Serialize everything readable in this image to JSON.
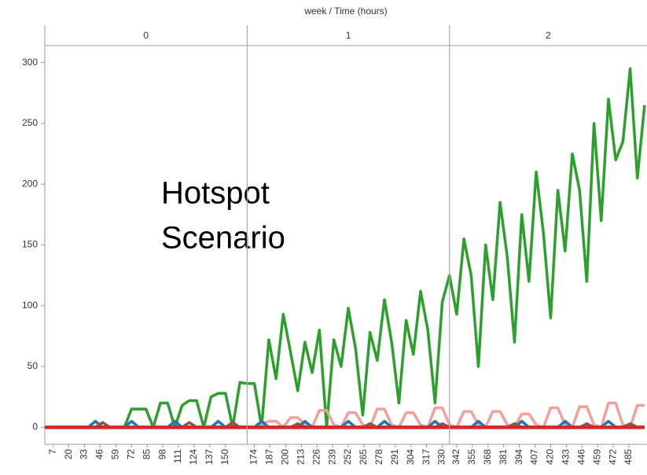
{
  "chart_data": {
    "type": "line",
    "title": "week  /  Time (hours)",
    "facets": [
      "0",
      "1",
      "2"
    ],
    "week_starts": [
      0,
      168,
      336
    ],
    "annotation": [
      "Hotspot",
      "Scenario"
    ],
    "xlim": [
      0,
      500
    ],
    "ylim": [
      -14,
      314
    ],
    "yticks": [
      0,
      50,
      100,
      150,
      200,
      250,
      300
    ],
    "xticks": [
      7,
      20,
      33,
      46,
      59,
      72,
      85,
      98,
      111,
      124,
      137,
      150,
      174,
      187,
      200,
      213,
      226,
      239,
      252,
      265,
      278,
      291,
      304,
      317,
      330,
      342,
      355,
      368,
      381,
      394,
      407,
      420,
      433,
      446,
      459,
      472,
      485
    ],
    "x": [
      0,
      6,
      12,
      18,
      24,
      30,
      36,
      42,
      48,
      54,
      60,
      66,
      72,
      78,
      84,
      90,
      96,
      102,
      108,
      114,
      120,
      126,
      132,
      138,
      144,
      150,
      156,
      162,
      168,
      174,
      180,
      186,
      192,
      198,
      204,
      210,
      216,
      222,
      228,
      234,
      240,
      246,
      252,
      258,
      264,
      270,
      276,
      282,
      288,
      294,
      300,
      306,
      312,
      318,
      324,
      330,
      336,
      342,
      348,
      354,
      360,
      366,
      372,
      378,
      384,
      390,
      396,
      402,
      408,
      414,
      420,
      426,
      432,
      438,
      444,
      450,
      456,
      462,
      468,
      474,
      480,
      486,
      492,
      498
    ],
    "series": [
      {
        "color": "#2ca02c",
        "width": 3.5,
        "values": [
          0,
          0,
          0,
          0,
          0,
          0,
          0,
          0,
          0,
          0,
          0,
          0,
          15,
          15,
          15,
          0,
          20,
          20,
          0,
          18,
          22,
          22,
          0,
          25,
          28,
          28,
          0,
          37,
          36,
          36,
          0,
          72,
          40,
          93,
          62,
          30,
          70,
          45,
          80,
          0,
          72,
          50,
          98,
          65,
          10,
          78,
          55,
          105,
          70,
          20,
          88,
          60,
          112,
          80,
          20,
          103,
          125,
          93,
          155,
          125,
          50,
          150,
          105,
          185,
          140,
          70,
          175,
          120,
          210,
          160,
          90,
          195,
          145,
          225,
          195,
          120,
          250,
          170,
          270,
          220,
          235,
          295,
          205,
          265
        ]
      },
      {
        "color": "#f4a09a",
        "width": 3.5,
        "values": [
          0,
          0,
          0,
          0,
          0,
          0,
          0,
          0,
          0,
          0,
          0,
          0,
          0,
          0,
          0,
          0,
          0,
          0,
          0,
          0,
          0,
          0,
          0,
          0,
          0,
          0,
          0,
          0,
          0,
          0,
          3,
          5,
          5,
          0,
          8,
          8,
          2,
          0,
          14,
          14,
          2,
          0,
          12,
          12,
          2,
          0,
          15,
          15,
          2,
          0,
          12,
          12,
          2,
          0,
          16,
          16,
          2,
          0,
          13,
          13,
          2,
          0,
          13,
          13,
          2,
          0,
          11,
          11,
          2,
          0,
          16,
          16,
          2,
          0,
          17,
          17,
          2,
          0,
          20,
          20,
          2,
          0,
          18,
          18
        ]
      },
      {
        "color": "#1f77b4",
        "width": 3.5,
        "values": [
          0,
          0,
          0,
          0,
          0,
          0,
          0,
          5,
          0,
          0,
          0,
          0,
          5,
          0,
          0,
          0,
          0,
          0,
          5,
          0,
          0,
          0,
          0,
          0,
          5,
          0,
          0,
          0,
          0,
          0,
          5,
          0,
          0,
          0,
          0,
          0,
          5,
          0,
          0,
          0,
          0,
          0,
          5,
          0,
          0,
          0,
          0,
          5,
          0,
          0,
          0,
          0,
          0,
          0,
          5,
          0,
          0,
          0,
          0,
          0,
          5,
          0,
          0,
          0,
          0,
          0,
          5,
          0,
          0,
          0,
          0,
          0,
          5,
          0,
          0,
          0,
          0,
          0,
          5,
          0,
          0,
          0,
          0,
          0
        ]
      },
      {
        "color": "#8c564b",
        "width": 3.5,
        "values": [
          0,
          0,
          0,
          0,
          0,
          0,
          0,
          0,
          4,
          0,
          0,
          0,
          0,
          0,
          0,
          0,
          0,
          0,
          0,
          0,
          4,
          0,
          0,
          0,
          0,
          0,
          4,
          0,
          0,
          0,
          0,
          0,
          0,
          0,
          0,
          3,
          0,
          0,
          0,
          0,
          0,
          0,
          0,
          0,
          0,
          3,
          0,
          0,
          0,
          0,
          0,
          0,
          0,
          0,
          0,
          3,
          0,
          0,
          0,
          0,
          0,
          0,
          0,
          0,
          0,
          3,
          0,
          0,
          0,
          0,
          0,
          0,
          0,
          0,
          0,
          3,
          0,
          0,
          0,
          0,
          0,
          3,
          0,
          0
        ]
      },
      {
        "color": "#d62728",
        "width": 4.5,
        "values": [
          0,
          0,
          0,
          0,
          0,
          0,
          0,
          0,
          0,
          0,
          0,
          0,
          0,
          0,
          0,
          0,
          0,
          0,
          0,
          0,
          0,
          0,
          0,
          0,
          0,
          0,
          0,
          0,
          0,
          0,
          0,
          0,
          0,
          0,
          0,
          0,
          0,
          0,
          0,
          0,
          0,
          0,
          0,
          0,
          0,
          0,
          0,
          0,
          0,
          0,
          0,
          0,
          0,
          0,
          0,
          0,
          0,
          0,
          0,
          0,
          0,
          0,
          0,
          0,
          0,
          0,
          0,
          0,
          0,
          0,
          0,
          0,
          0,
          0,
          0,
          0,
          0,
          0,
          0,
          0,
          0,
          0,
          0,
          0
        ]
      }
    ]
  }
}
